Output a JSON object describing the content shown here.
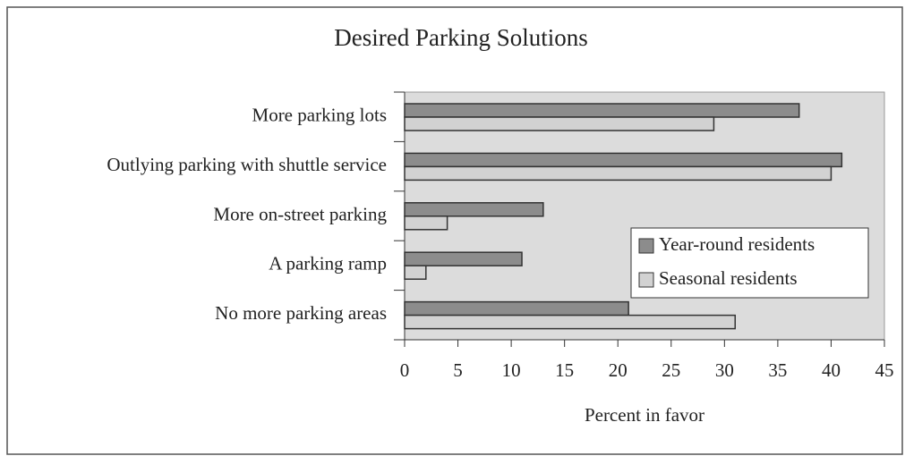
{
  "chart_data": {
    "type": "barh",
    "title": "Desired Parking Solutions",
    "categories": [
      "More parking lots",
      "Outlying parking with shuttle service",
      "More on-street parking",
      "A parking ramp",
      "No more parking areas"
    ],
    "series": [
      {
        "name": "Year-round residents",
        "color": "#8c8c8c",
        "values": [
          37,
          41,
          13,
          11,
          21
        ]
      },
      {
        "name": "Seasonal residents",
        "color": "#d2d2d2",
        "values": [
          29,
          40,
          4,
          2,
          31
        ]
      }
    ],
    "xlabel": "Percent in favor",
    "xlim": [
      0,
      45
    ],
    "xticks": [
      0,
      5,
      10,
      15,
      20,
      25,
      30,
      35,
      40,
      45
    ],
    "grid": false,
    "legend": "right"
  }
}
